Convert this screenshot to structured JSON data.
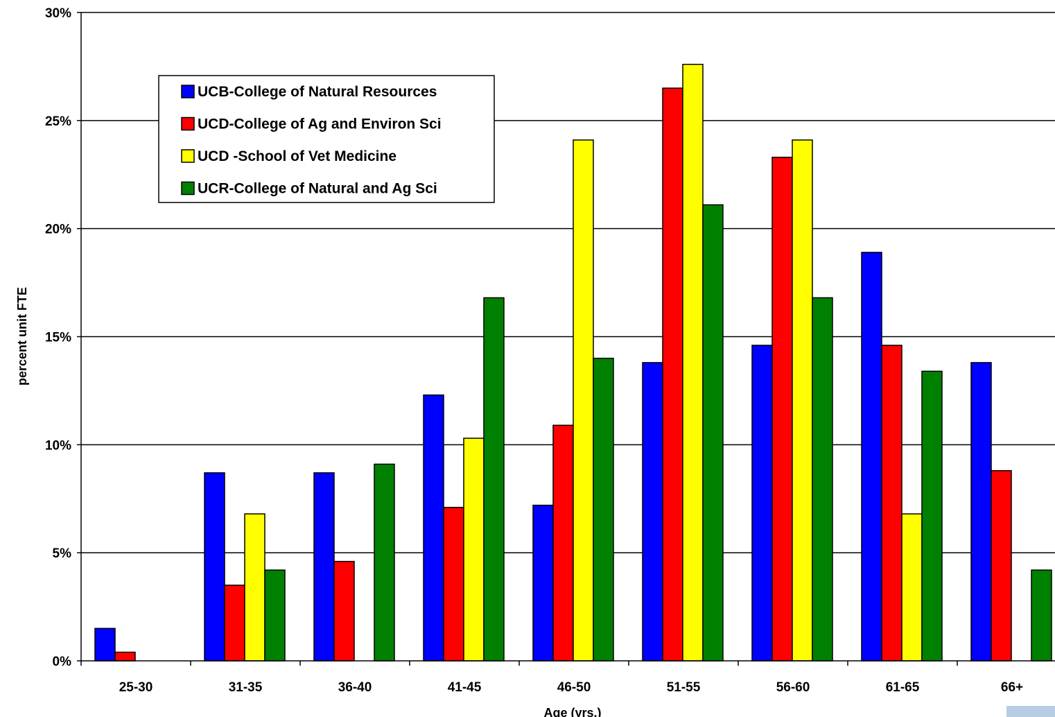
{
  "chart_data": {
    "type": "bar",
    "title": "",
    "xlabel": "Age (yrs.)",
    "ylabel": "percent unit FTE",
    "categories": [
      "25-30",
      "31-35",
      "36-40",
      "41-45",
      "46-50",
      "51-55",
      "56-60",
      "61-65",
      "66+"
    ],
    "ylim": [
      0,
      30
    ],
    "y_ticks": [
      0,
      5,
      10,
      15,
      20,
      25,
      30
    ],
    "y_tick_labels": [
      "0%",
      "5%",
      "10%",
      "15%",
      "20%",
      "25%",
      "30%"
    ],
    "grid": true,
    "legend_position": "top-left",
    "series": [
      {
        "name": "UCB-College of Natural Resources",
        "color": "#0000ff",
        "values": [
          1.5,
          8.7,
          8.7,
          12.3,
          7.2,
          13.8,
          14.6,
          18.9,
          13.8
        ]
      },
      {
        "name": "UCD-College of Ag and Environ Sci",
        "color": "#ff0000",
        "values": [
          0.4,
          3.5,
          4.6,
          7.1,
          10.9,
          26.5,
          23.3,
          14.6,
          8.8
        ]
      },
      {
        "name": "UCD -School of Vet Medicine",
        "color": "#ffff00",
        "values": [
          0,
          6.8,
          0,
          10.3,
          24.1,
          27.6,
          24.1,
          6.8,
          0
        ]
      },
      {
        "name": "UCR-College of Natural and Ag Sci",
        "color": "#008000",
        "values": [
          0,
          4.2,
          9.1,
          16.8,
          14.0,
          21.1,
          16.8,
          13.4,
          4.2
        ]
      }
    ]
  }
}
